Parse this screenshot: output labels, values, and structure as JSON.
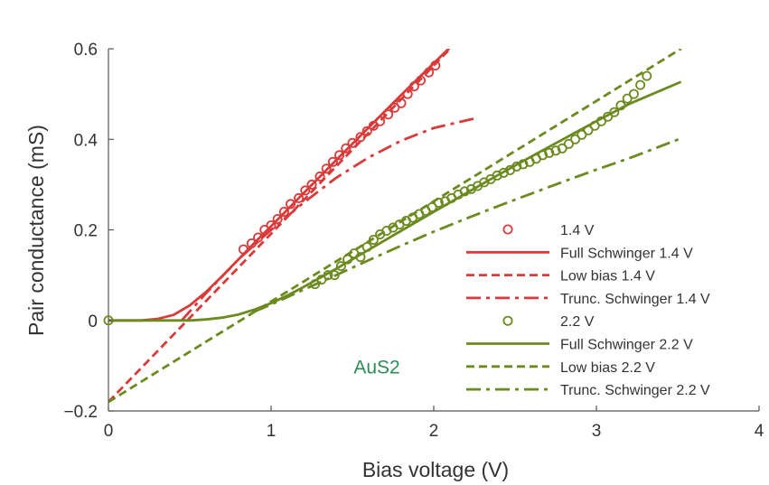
{
  "chart_data": {
    "type": "line",
    "xlabel": "Bias voltage (V)",
    "ylabel": "Pair conductance (mS)",
    "xlim": [
      0,
      4
    ],
    "ylim": [
      -0.2,
      0.6
    ],
    "xticks": [
      0,
      1,
      2,
      3,
      4
    ],
    "xtick_labels": [
      "0",
      "1",
      "2",
      "3",
      "4"
    ],
    "yticks": [
      -0.2,
      0,
      0.2,
      0.4,
      0.6
    ],
    "ytick_labels": [
      "−0.2",
      "0",
      "0.2",
      "0.4",
      "0.6"
    ],
    "grid": false,
    "legend_position": "bottom-right",
    "annotation": {
      "text": "AuS2",
      "x": 1.65,
      "y": -0.117,
      "color": "#2e8b57"
    },
    "series": [
      {
        "name": "1.4 V",
        "kind": "scatter",
        "color": "#d93a3a",
        "x": [
          0.83,
          0.88,
          0.92,
          0.96,
          1.0,
          1.04,
          1.08,
          1.12,
          1.17,
          1.21,
          1.25,
          1.3,
          1.34,
          1.38,
          1.42,
          1.46,
          1.5,
          1.55,
          1.59,
          1.63,
          1.67,
          1.72,
          1.76,
          1.8,
          1.84,
          1.88,
          1.92,
          1.97,
          2.01
        ],
        "y": [
          0.157,
          0.17,
          0.183,
          0.2,
          0.21,
          0.224,
          0.24,
          0.257,
          0.27,
          0.287,
          0.3,
          0.318,
          0.335,
          0.35,
          0.365,
          0.38,
          0.392,
          0.405,
          0.418,
          0.43,
          0.44,
          0.455,
          0.47,
          0.48,
          0.5,
          0.517,
          0.53,
          0.548,
          0.563
        ]
      },
      {
        "name": "Full Schwinger 1.4 V",
        "kind": "line",
        "dash": "solid",
        "color": "#d93a3a",
        "x": [
          0.0,
          0.2,
          0.3,
          0.4,
          0.5,
          0.6,
          0.7,
          0.8,
          0.9,
          1.0,
          1.2,
          1.4,
          1.6,
          1.8,
          2.0,
          2.2
        ],
        "y": [
          0.0,
          0.0,
          0.003,
          0.012,
          0.033,
          0.063,
          0.098,
          0.135,
          0.172,
          0.208,
          0.281,
          0.354,
          0.426,
          0.498,
          0.568,
          0.638
        ]
      },
      {
        "name": "Low bias 1.4 V",
        "kind": "line",
        "dash": "dashed",
        "color": "#d93a3a",
        "x": [
          0.0,
          2.1
        ],
        "y": [
          -0.18,
          0.6
        ]
      },
      {
        "name": "Trunc. Schwinger 1.4 V",
        "kind": "line",
        "dash": "dashdot",
        "color": "#d93a3a",
        "x": [
          0.45,
          0.6,
          0.8,
          1.0,
          1.2,
          1.4,
          1.6,
          1.8,
          2.0,
          2.25
        ],
        "y": [
          0.0,
          0.06,
          0.135,
          0.2,
          0.26,
          0.315,
          0.36,
          0.397,
          0.425,
          0.446
        ]
      },
      {
        "name": "2.2 V",
        "kind": "scatter",
        "color": "#6b8a1f",
        "x": [
          1.27,
          1.31,
          1.35,
          1.39,
          1.43,
          1.47,
          1.51,
          1.55,
          1.59,
          1.63,
          1.67,
          1.71,
          1.75,
          1.79,
          1.83,
          1.87,
          1.91,
          1.95,
          1.99,
          2.03,
          2.07,
          2.11,
          2.15,
          2.19,
          2.23,
          2.27,
          2.31,
          2.35,
          2.39,
          2.43,
          2.47,
          2.51,
          2.55,
          2.59,
          2.63,
          2.67,
          2.71,
          2.75,
          2.79,
          2.83,
          2.87,
          2.91,
          2.95,
          2.99,
          3.03,
          3.07,
          3.11,
          3.15,
          3.19,
          3.23,
          3.27,
          3.31
        ],
        "y": [
          0.08,
          0.09,
          0.1,
          0.1,
          0.12,
          0.135,
          0.148,
          0.14,
          0.162,
          0.178,
          0.19,
          0.198,
          0.205,
          0.212,
          0.22,
          0.227,
          0.235,
          0.242,
          0.25,
          0.26,
          0.263,
          0.27,
          0.278,
          0.285,
          0.29,
          0.297,
          0.305,
          0.312,
          0.32,
          0.326,
          0.332,
          0.34,
          0.345,
          0.35,
          0.357,
          0.365,
          0.37,
          0.375,
          0.38,
          0.39,
          0.4,
          0.41,
          0.42,
          0.43,
          0.44,
          0.45,
          0.46,
          0.475,
          0.49,
          0.5,
          0.52,
          0.54
        ]
      },
      {
        "name": "Full Schwinger 2.2 V",
        "kind": "line",
        "dash": "solid",
        "color": "#6b8a1f",
        "x": [
          0.0,
          0.3,
          0.5,
          0.6,
          0.7,
          0.8,
          0.9,
          1.0,
          1.1,
          1.2,
          1.3,
          1.4,
          1.6,
          1.8,
          2.0,
          2.2,
          2.4,
          2.6,
          2.8,
          3.0,
          3.2,
          3.52
        ],
        "y": [
          0.0,
          0.0,
          0.0,
          0.002,
          0.006,
          0.013,
          0.024,
          0.038,
          0.055,
          0.074,
          0.094,
          0.114,
          0.156,
          0.198,
          0.24,
          0.281,
          0.322,
          0.362,
          0.401,
          0.44,
          0.478,
          0.527
        ]
      },
      {
        "name": "Low bias 2.2 V",
        "kind": "line",
        "dash": "dashed",
        "color": "#6b8a1f",
        "x": [
          0.0,
          3.52
        ],
        "y": [
          -0.18,
          0.6
        ]
      },
      {
        "name": "Trunc. Schwinger 2.2 V",
        "kind": "line",
        "dash": "dashdot",
        "color": "#6b8a1f",
        "x": [
          0.9,
          1.0,
          1.2,
          1.4,
          1.6,
          1.8,
          2.0,
          2.2,
          2.4,
          2.6,
          2.8,
          3.0,
          3.2,
          3.52
        ],
        "y": [
          0.02,
          0.035,
          0.068,
          0.1,
          0.133,
          0.165,
          0.196,
          0.225,
          0.253,
          0.28,
          0.307,
          0.333,
          0.358,
          0.402
        ]
      }
    ]
  }
}
